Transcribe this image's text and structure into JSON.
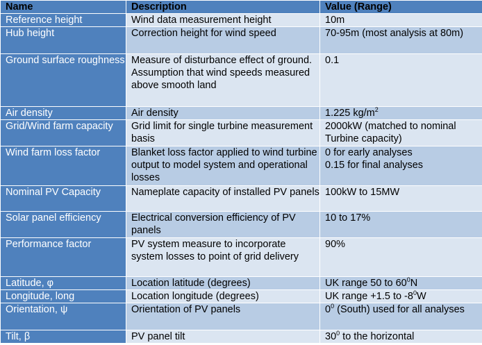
{
  "table": {
    "headers": [
      "Name",
      "Description",
      "Value (Range)"
    ],
    "rows": [
      {
        "name": "Reference height",
        "desc": "Wind data measurement height",
        "val": "10m"
      },
      {
        "name": "Hub height",
        "desc": "Correction height for wind speed",
        "val": "70-95m (most analysis at 80m)"
      },
      {
        "name": "Ground surface roughness",
        "desc": "Measure of disturbance effect of ground. Assumption that wind speeds measured above smooth land",
        "val": "0.1"
      },
      {
        "name": "Air density",
        "desc": "Air density",
        "val": "1.225 kg/m",
        "val_sup": "2"
      },
      {
        "name": "Grid/Wind farm capacity",
        "desc": "Grid limit for single turbine measurement basis",
        "val": "2000kW (matched to nominal Turbine capacity)"
      },
      {
        "name": "Wind farm loss factor",
        "desc": "Blanket loss factor applied to wind turbine output to model system and operational losses",
        "val_line1": "0 for early analyses",
        "val_line2": "0.15 for final analyses"
      },
      {
        "name": "Nominal PV Capacity",
        "desc": "Nameplate capacity of installed PV panels",
        "val": "100kW to 15MW"
      },
      {
        "name": "Solar panel efficiency",
        "desc": "Electrical conversion efficiency of PV panels",
        "val": "10 to 17%"
      },
      {
        "name": "Performance factor",
        "desc": "PV system measure to incorporate system losses to point of grid delivery",
        "val": "90%"
      },
      {
        "name": "Latitude, φ",
        "desc": "Location latitude (degrees)",
        "val": "UK range 50 to 60",
        "val_sup": "0",
        "val_after": "N"
      },
      {
        "name": "Longitude, long",
        "desc": "Location longitude (degrees)",
        "val": "UK range +1.5 to -8",
        "val_sup": "0",
        "val_after": "W"
      },
      {
        "name": "Orientation, ψ",
        "desc": "Orientation of PV panels",
        "val": "0",
        "val_sup": "0",
        "val_after": " (South) used for all analyses"
      },
      {
        "name": "Tilt, β",
        "desc": "PV panel tilt",
        "val": "30",
        "val_sup": "0",
        "val_after": " to the horizontal"
      }
    ]
  }
}
